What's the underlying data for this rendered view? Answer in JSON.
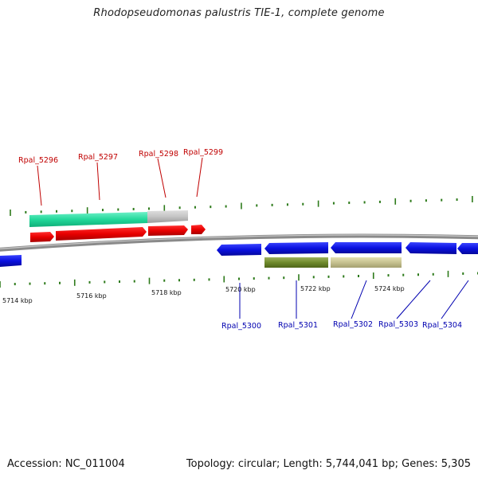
{
  "title": "Rhodopseudomonas palustris TIE-1, complete genome",
  "footer": {
    "accession": "Accession: NC_011004",
    "summary": "Topology: circular; Length: 5,744,041 bp; Genes: 5,305"
  },
  "colors": {
    "forward_gene": "#e80000",
    "reverse_gene": "#0a10e0",
    "backbone": "#8a8a8a",
    "tick": "#2d7a1a",
    "label_forward": "#c00000",
    "label_reverse": "#0000b0"
  },
  "scale_labels": [
    "5714 kbp",
    "5716 kbp",
    "5718 kbp",
    "5720 kbp",
    "5722 kbp",
    "5724 kbp"
  ],
  "gene_labels_top": [
    "Rpal_5296",
    "Rpal_5297",
    "Rpal_5298",
    "Rpal_5299"
  ],
  "gene_labels_bottom": [
    "Rpal_5300",
    "Rpal_5301",
    "Rpal_5302",
    "Rpal_5303",
    "Rpal_5304"
  ]
}
